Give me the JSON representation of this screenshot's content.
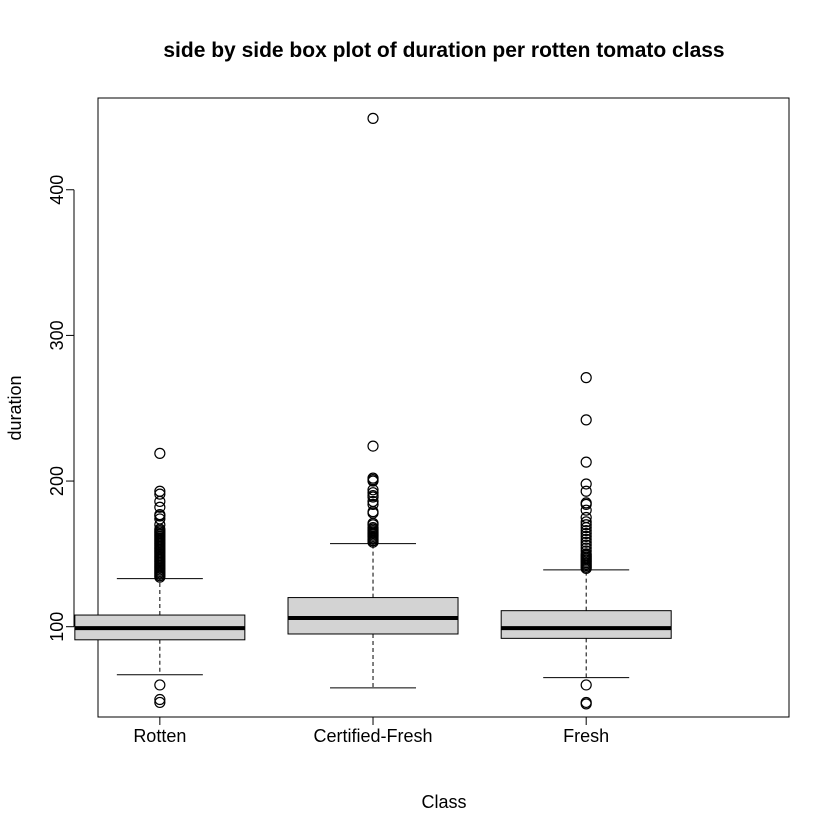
{
  "chart_data": {
    "type": "box",
    "title": "side by side box plot of duration per rotten tomato class",
    "xlabel": "Class",
    "ylabel": "duration",
    "categories": [
      "Rotten",
      "Certified-Fresh",
      "Fresh"
    ],
    "yticks": [
      100,
      200,
      300,
      400
    ],
    "ylim": [
      38,
      463
    ],
    "grid": false,
    "legend": "none",
    "box_fill": "#d3d3d3",
    "boxes": [
      {
        "category": "Rotten",
        "whisker_low": 67,
        "q1": 91,
        "median": 99,
        "q3": 108,
        "whisker_high": 133,
        "outliers_low": [
          48,
          50,
          60
        ],
        "outliers_high": [
          134,
          135,
          136,
          137,
          138,
          139,
          140,
          141,
          142,
          143,
          144,
          145,
          146,
          147,
          148,
          149,
          150,
          151,
          152,
          153,
          154,
          155,
          156,
          157,
          158,
          159,
          160,
          161,
          162,
          163,
          164,
          165,
          166,
          167,
          170,
          174,
          176,
          177,
          182,
          186,
          191,
          193,
          219
        ]
      },
      {
        "category": "Certified-Fresh",
        "whisker_low": 58,
        "q1": 95,
        "median": 106,
        "q3": 120,
        "whisker_high": 157,
        "outliers_low": [],
        "outliers_high": [
          158,
          159,
          160,
          161,
          162,
          163,
          164,
          165,
          166,
          167,
          168,
          170,
          171,
          178,
          179,
          184,
          186,
          189,
          190,
          192,
          194,
          200,
          201,
          202,
          224,
          449
        ]
      },
      {
        "category": "Fresh",
        "whisker_low": 65,
        "q1": 92,
        "median": 99,
        "q3": 111,
        "whisker_high": 139,
        "outliers_low": [
          47,
          48,
          60
        ],
        "outliers_high": [
          140,
          141,
          142,
          143,
          144,
          145,
          146,
          147,
          148,
          149,
          150,
          152,
          154,
          156,
          158,
          160,
          162,
          164,
          166,
          168,
          170,
          172,
          175,
          180,
          184,
          185,
          193,
          198,
          213,
          242,
          271
        ]
      }
    ]
  }
}
